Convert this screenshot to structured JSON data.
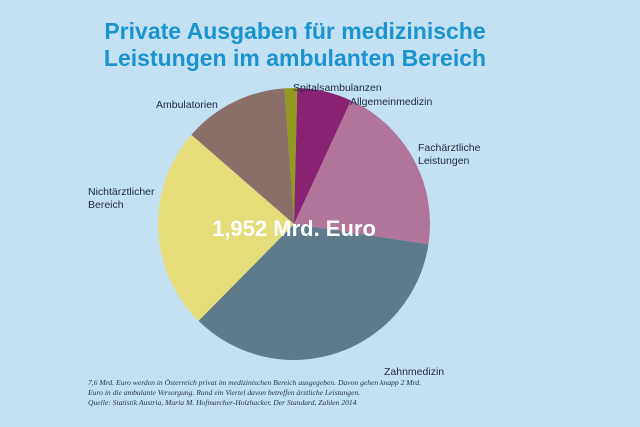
{
  "title": {
    "line1": "Private Ausgaben für medizinische",
    "line2": "Leistungen im ambulanten Bereich"
  },
  "colors": {
    "background": "#c3e1f2",
    "title": "#1a93cf"
  },
  "chart_data": {
    "type": "pie",
    "center_label": "1,952 Mrd. Euro",
    "slices": [
      {
        "name": "Spitalsambulanzen",
        "value": 1.5,
        "color": "#8f9a1e"
      },
      {
        "name": "Allgemeinmedizin",
        "value": 6.5,
        "color": "#8a2373"
      },
      {
        "name": "Fachärztliche Leistungen",
        "value": 20.5,
        "color": "#b07599"
      },
      {
        "name": "Zahnmedizin",
        "value": 35.0,
        "color": "#5f7a8b"
      },
      {
        "name": "Nichtärztlicher Bereich",
        "value": 24.0,
        "color": "#e4dd7a"
      },
      {
        "name": "Ambulatorien",
        "value": 12.5,
        "color": "#8a6e68"
      }
    ]
  },
  "labels": {
    "spitalsambulanzen": "Spitalsambulanzen",
    "allgemeinmedizin": "Allgemeinmedizin",
    "fach_line1": "Fachärztliche",
    "fach_line2": "Leistungen",
    "zahnmedizin": "Zahnmedizin",
    "nicht_line1": "Nichtärztlicher",
    "nicht_line2": "Bereich",
    "ambulatorien": "Ambulatorien"
  },
  "footnote": {
    "line1": "7,6 Mrd. Euro werden in Österreich privat im medizinischen Bereich ausgegeben. Davon gehen knapp 2 Mrd.",
    "line2": "Euro in die ambulante Versorgung. Rund ein Viertel davon betreffen ärztliche Leistungen.",
    "line3": "Quelle: Statistik Austria, Maria M. Hofmarcher-Holzhacker, Der Standard, Zahlen 2014"
  }
}
